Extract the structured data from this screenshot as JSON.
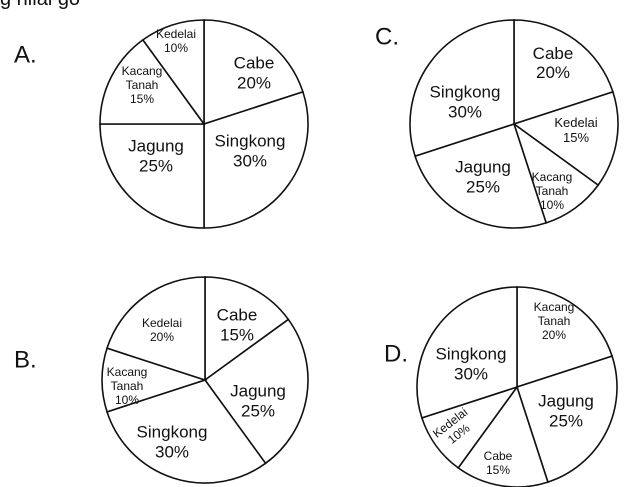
{
  "header_fragment": "g nilai go",
  "chart_data": [
    {
      "type": "pie",
      "option_letter": "A.",
      "slices": [
        {
          "lines": [
            "Cabe",
            "20%"
          ],
          "value": 20
        },
        {
          "lines": [
            "Singkong",
            "30%"
          ],
          "value": 30
        },
        {
          "lines": [
            "Jagung",
            "25%"
          ],
          "value": 25
        },
        {
          "lines": [
            "Kacang",
            "Tanah",
            "15%"
          ],
          "value": 15
        },
        {
          "lines": [
            "Kedelai",
            "10%"
          ],
          "value": 10
        }
      ]
    },
    {
      "type": "pie",
      "option_letter": "C.",
      "slices": [
        {
          "lines": [
            "Cabe",
            "20%"
          ],
          "value": 20
        },
        {
          "lines": [
            "Kedelai",
            "15%"
          ],
          "value": 15
        },
        {
          "lines": [
            "Kacang",
            "Tanah",
            "10%"
          ],
          "value": 10
        },
        {
          "lines": [
            "Jagung",
            "25%"
          ],
          "value": 25
        },
        {
          "lines": [
            "Singkong",
            "30%"
          ],
          "value": 30
        }
      ]
    },
    {
      "type": "pie",
      "option_letter": "B.",
      "slices": [
        {
          "lines": [
            "Cabe",
            "15%"
          ],
          "value": 15
        },
        {
          "lines": [
            "Jagung",
            "25%"
          ],
          "value": 25
        },
        {
          "lines": [
            "Singkong",
            "30%"
          ],
          "value": 30
        },
        {
          "lines": [
            "Kacang",
            "Tanah",
            "10%"
          ],
          "value": 10
        },
        {
          "lines": [
            "Kedelai",
            "20%"
          ],
          "value": 20
        }
      ]
    },
    {
      "type": "pie",
      "option_letter": "D.",
      "slices": [
        {
          "lines": [
            "Kacang",
            "Tanah",
            "20%"
          ],
          "value": 20
        },
        {
          "lines": [
            "Jagung",
            "25%"
          ],
          "value": 25
        },
        {
          "lines": [
            "Cabe",
            "15%"
          ],
          "value": 15
        },
        {
          "lines": [
            "Kedelai",
            "10%"
          ],
          "value": 10
        },
        {
          "lines": [
            "Singkong",
            "30%"
          ],
          "value": 30
        }
      ]
    }
  ]
}
